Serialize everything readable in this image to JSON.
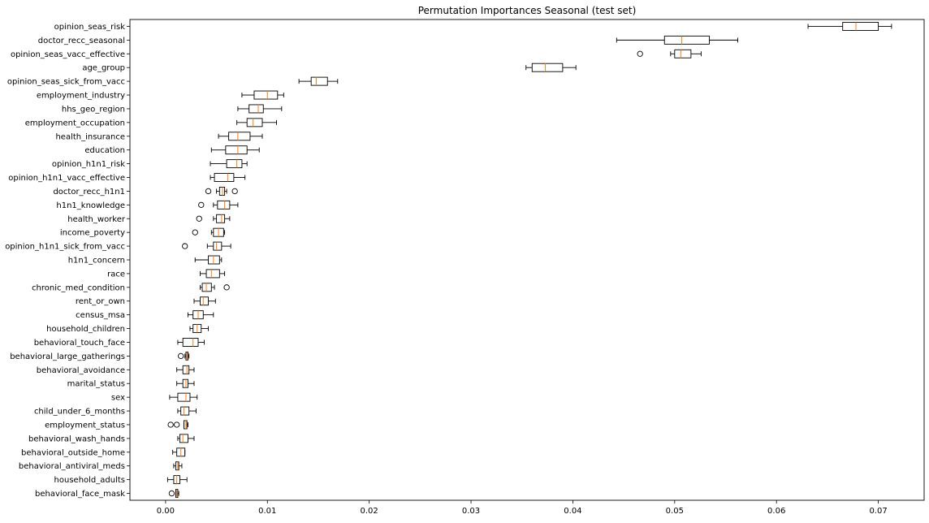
{
  "chart_data": {
    "type": "boxplot",
    "title": "Permutation Importances Seasonal (test set)",
    "xlabel": "",
    "ylabel": "",
    "xlim": [
      -0.0035,
      0.0745
    ],
    "x_ticks": [
      "0.00",
      "0.01",
      "0.02",
      "0.03",
      "0.04",
      "0.05",
      "0.06",
      "0.07"
    ],
    "grid": false,
    "box_color": "#000000",
    "median_color": "#ff7f0e",
    "categories": [
      "opinion_seas_risk",
      "doctor_recc_seasonal",
      "opinion_seas_vacc_effective",
      "age_group",
      "opinion_seas_sick_from_vacc",
      "employment_industry",
      "hhs_geo_region",
      "employment_occupation",
      "health_insurance",
      "education",
      "opinion_h1n1_risk",
      "opinion_h1n1_vacc_effective",
      "doctor_recc_h1n1",
      "h1n1_knowledge",
      "health_worker",
      "income_poverty",
      "opinion_h1n1_sick_from_vacc",
      "h1n1_concern",
      "race",
      "chronic_med_condition",
      "rent_or_own",
      "census_msa",
      "household_children",
      "behavioral_touch_face",
      "behavioral_large_gatherings",
      "behavioral_avoidance",
      "marital_status",
      "sex",
      "child_under_6_months",
      "employment_status",
      "behavioral_wash_hands",
      "behavioral_outside_home",
      "behavioral_antiviral_meds",
      "household_adults",
      "behavioral_face_mask"
    ],
    "boxes": [
      {
        "whisker_low": 0.0631,
        "q1": 0.0665,
        "median": 0.0678,
        "q3": 0.07,
        "whisker_high": 0.0713,
        "outliers": []
      },
      {
        "whisker_low": 0.0443,
        "q1": 0.049,
        "median": 0.0507,
        "q3": 0.0534,
        "whisker_high": 0.0562,
        "outliers": []
      },
      {
        "whisker_low": 0.0496,
        "q1": 0.05,
        "median": 0.0506,
        "q3": 0.0516,
        "whisker_high": 0.0526,
        "outliers": [
          0.0466
        ]
      },
      {
        "whisker_low": 0.0354,
        "q1": 0.036,
        "median": 0.0373,
        "q3": 0.039,
        "whisker_high": 0.0403,
        "outliers": []
      },
      {
        "whisker_low": 0.0131,
        "q1": 0.0143,
        "median": 0.0148,
        "q3": 0.0159,
        "whisker_high": 0.0169,
        "outliers": []
      },
      {
        "whisker_low": 0.0075,
        "q1": 0.0087,
        "median": 0.01,
        "q3": 0.011,
        "whisker_high": 0.0116,
        "outliers": []
      },
      {
        "whisker_low": 0.0071,
        "q1": 0.0082,
        "median": 0.0091,
        "q3": 0.0096,
        "whisker_high": 0.0114,
        "outliers": []
      },
      {
        "whisker_low": 0.007,
        "q1": 0.008,
        "median": 0.0086,
        "q3": 0.0095,
        "whisker_high": 0.0109,
        "outliers": []
      },
      {
        "whisker_low": 0.0052,
        "q1": 0.0062,
        "median": 0.0071,
        "q3": 0.0083,
        "whisker_high": 0.0095,
        "outliers": []
      },
      {
        "whisker_low": 0.0045,
        "q1": 0.0059,
        "median": 0.0071,
        "q3": 0.008,
        "whisker_high": 0.0092,
        "outliers": []
      },
      {
        "whisker_low": 0.0044,
        "q1": 0.006,
        "median": 0.007,
        "q3": 0.0075,
        "whisker_high": 0.008,
        "outliers": []
      },
      {
        "whisker_low": 0.0044,
        "q1": 0.0048,
        "median": 0.0061,
        "q3": 0.0067,
        "whisker_high": 0.0078,
        "outliers": []
      },
      {
        "whisker_low": 0.005,
        "q1": 0.0053,
        "median": 0.0056,
        "q3": 0.0058,
        "whisker_high": 0.006,
        "outliers": [
          0.0042,
          0.0068
        ]
      },
      {
        "whisker_low": 0.0047,
        "q1": 0.0051,
        "median": 0.0058,
        "q3": 0.0063,
        "whisker_high": 0.0071,
        "outliers": [
          0.0035
        ]
      },
      {
        "whisker_low": 0.0047,
        "q1": 0.005,
        "median": 0.0055,
        "q3": 0.0058,
        "whisker_high": 0.0063,
        "outliers": [
          0.0033
        ]
      },
      {
        "whisker_low": 0.0045,
        "q1": 0.0047,
        "median": 0.0052,
        "q3": 0.0057,
        "whisker_high": 0.0058,
        "outliers": [
          0.0029
        ]
      },
      {
        "whisker_low": 0.0041,
        "q1": 0.0047,
        "median": 0.005,
        "q3": 0.0055,
        "whisker_high": 0.0064,
        "outliers": [
          0.0019
        ]
      },
      {
        "whisker_low": 0.0029,
        "q1": 0.0042,
        "median": 0.0047,
        "q3": 0.0053,
        "whisker_high": 0.0055,
        "outliers": []
      },
      {
        "whisker_low": 0.0034,
        "q1": 0.004,
        "median": 0.0045,
        "q3": 0.0053,
        "whisker_high": 0.0058,
        "outliers": []
      },
      {
        "whisker_low": 0.0034,
        "q1": 0.0036,
        "median": 0.004,
        "q3": 0.0045,
        "whisker_high": 0.0048,
        "outliers": [
          0.006
        ]
      },
      {
        "whisker_low": 0.0028,
        "q1": 0.0034,
        "median": 0.0037,
        "q3": 0.0042,
        "whisker_high": 0.0049,
        "outliers": []
      },
      {
        "whisker_low": 0.0022,
        "q1": 0.0027,
        "median": 0.0032,
        "q3": 0.0037,
        "whisker_high": 0.0047,
        "outliers": []
      },
      {
        "whisker_low": 0.0024,
        "q1": 0.0027,
        "median": 0.0031,
        "q3": 0.0035,
        "whisker_high": 0.0042,
        "outliers": []
      },
      {
        "whisker_low": 0.0012,
        "q1": 0.0017,
        "median": 0.0027,
        "q3": 0.0032,
        "whisker_high": 0.0038,
        "outliers": []
      },
      {
        "whisker_low": 0.0019,
        "q1": 0.002,
        "median": 0.0021,
        "q3": 0.0022,
        "whisker_high": 0.0023,
        "outliers": [
          0.0015
        ]
      },
      {
        "whisker_low": 0.0011,
        "q1": 0.0017,
        "median": 0.0021,
        "q3": 0.0023,
        "whisker_high": 0.0028,
        "outliers": []
      },
      {
        "whisker_low": 0.0011,
        "q1": 0.0017,
        "median": 0.002,
        "q3": 0.0022,
        "whisker_high": 0.0028,
        "outliers": []
      },
      {
        "whisker_low": 0.0004,
        "q1": 0.0012,
        "median": 0.002,
        "q3": 0.0024,
        "whisker_high": 0.0031,
        "outliers": []
      },
      {
        "whisker_low": 0.0012,
        "q1": 0.0015,
        "median": 0.0018,
        "q3": 0.0023,
        "whisker_high": 0.003,
        "outliers": []
      },
      {
        "whisker_low": 0.0018,
        "q1": 0.0018,
        "median": 0.002,
        "q3": 0.0021,
        "whisker_high": 0.0022,
        "outliers": [
          0.0005,
          0.0011
        ]
      },
      {
        "whisker_low": 0.0012,
        "q1": 0.0014,
        "median": 0.0017,
        "q3": 0.0022,
        "whisker_high": 0.0028,
        "outliers": []
      },
      {
        "whisker_low": 0.0007,
        "q1": 0.0011,
        "median": 0.0015,
        "q3": 0.0019,
        "whisker_high": 0.0019,
        "outliers": []
      },
      {
        "whisker_low": 0.0008,
        "q1": 0.001,
        "median": 0.0012,
        "q3": 0.0013,
        "whisker_high": 0.0016,
        "outliers": []
      },
      {
        "whisker_low": 0.0002,
        "q1": 0.0008,
        "median": 0.0011,
        "q3": 0.0014,
        "whisker_high": 0.0021,
        "outliers": []
      },
      {
        "whisker_low": 0.001,
        "q1": 0.001,
        "median": 0.0011,
        "q3": 0.0012,
        "whisker_high": 0.0013,
        "outliers": [
          0.0006
        ]
      }
    ]
  }
}
